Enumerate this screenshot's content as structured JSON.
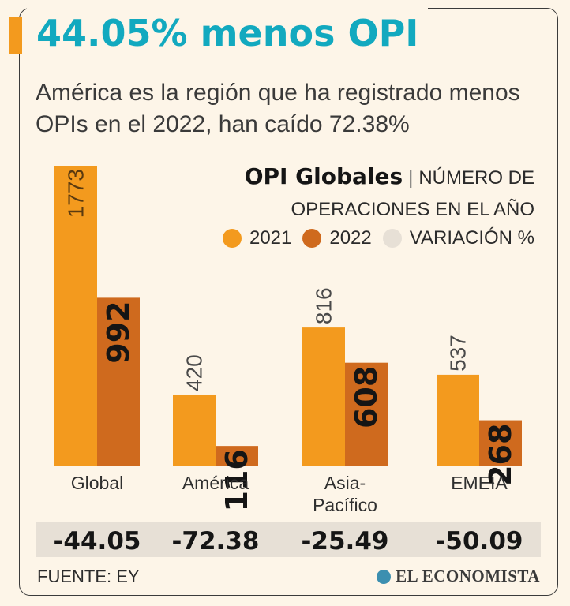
{
  "header": {
    "title": "44.05% menos OPI",
    "subtitle": "América es la región que ha registrado menos OPIs en el 2022, han caído 72.38%"
  },
  "legend": {
    "title_bold": "OPI Globales",
    "title_sep": "|",
    "title_rest_line1": "NÚMERO DE",
    "title_rest_line2": "OPERACIONES EN EL AÑO",
    "items": [
      {
        "label": "2021",
        "color": "#f39a1e"
      },
      {
        "label": "2022",
        "color": "#cf6a1e"
      },
      {
        "label": "VARIACIÓN %",
        "color": "#e7e0d6"
      }
    ]
  },
  "chart_data": {
    "type": "bar",
    "categories": [
      "Global",
      "América",
      "Asia-\nPacífico",
      "EMEIA"
    ],
    "series": [
      {
        "name": "2021",
        "values": [
          1773,
          420,
          816,
          537
        ],
        "color": "#f39a1e"
      },
      {
        "name": "2022",
        "values": [
          992,
          116,
          608,
          268
        ],
        "color": "#cf6a1e"
      }
    ],
    "variation": [
      "-44.05",
      "-72.38",
      "-25.49",
      "-50.09"
    ],
    "ylim": [
      0,
      1773
    ],
    "title": "OPI Globales",
    "xlabel": "",
    "ylabel": ""
  },
  "footer": {
    "source": "FUENTE: EY",
    "brand": "EL ECONOMISTA"
  }
}
